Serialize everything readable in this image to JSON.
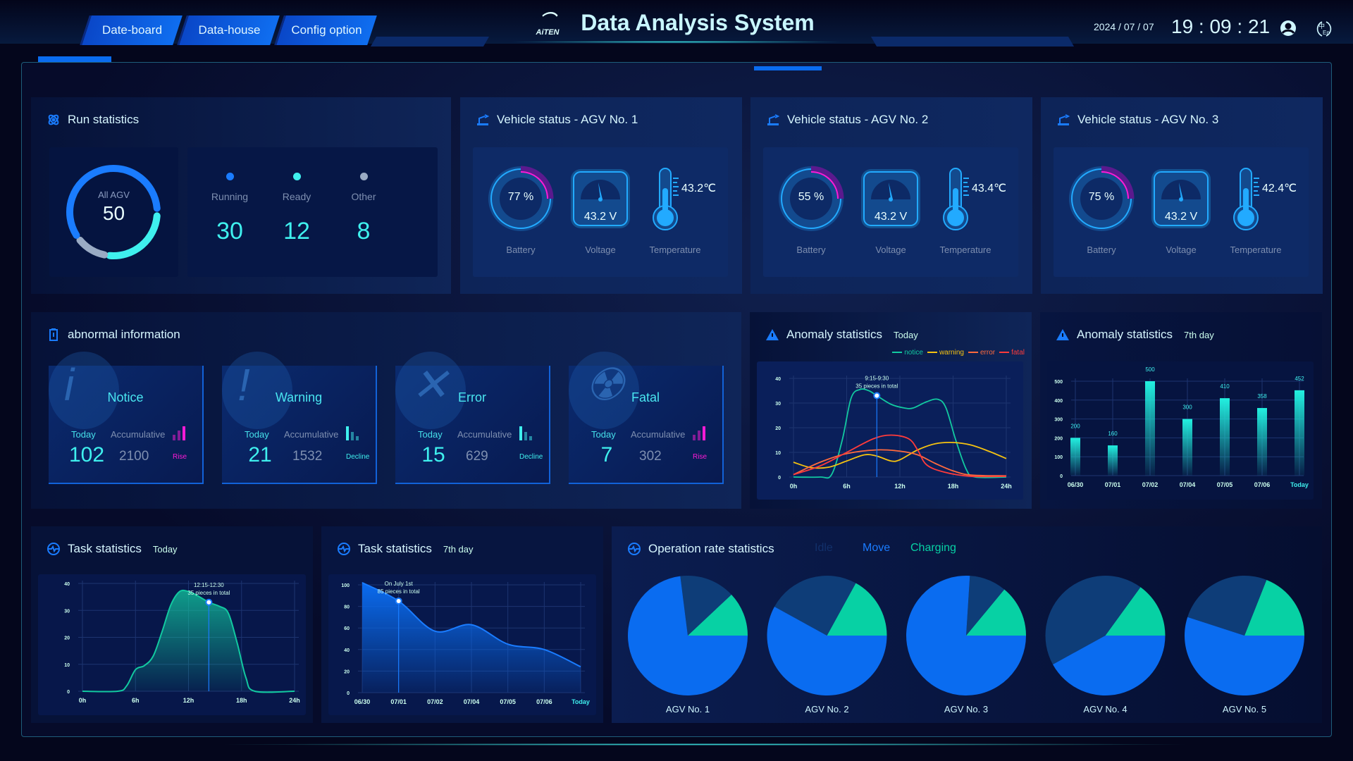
{
  "header": {
    "tabs": [
      "Date-board",
      "Data-house",
      "Config option"
    ],
    "logo": "AiTEN",
    "title": "Data Analysis System",
    "date": "2024 / 07 / 07",
    "time": "19 : 09 : 21",
    "user_icon": "user-icon",
    "lang_icon": "language-zh-en-icon"
  },
  "colors": {
    "accent": "#1a7cff",
    "cyan": "#3ff0ee",
    "magenta": "#ff1bd6",
    "notice": "#12c9a0",
    "warning": "#f5c211",
    "error": "#ff6a3d",
    "fatal": "#ff3b3b",
    "idle": "#0e3d78",
    "move": "#0a6cf0",
    "charging": "#07d1a4"
  },
  "run": {
    "title": "Run statistics",
    "center_label": "All AGV",
    "total": "50",
    "stats": [
      {
        "label": "Running",
        "value": "30",
        "color": "#1a7cff"
      },
      {
        "label": "Ready",
        "value": "12",
        "color": "#3ff0ee"
      },
      {
        "label": "Other",
        "value": "8",
        "color": "#9aabc4"
      }
    ]
  },
  "vehicles": [
    {
      "title": "Vehicle status - AGV No. 1",
      "battery": "77 %",
      "battery_pct": 77,
      "voltage": "43.2 V",
      "temperature": "43.2℃"
    },
    {
      "title": "Vehicle status - AGV No. 2",
      "battery": "55 %",
      "battery_pct": 55,
      "voltage": "43.2 V",
      "temperature": "43.4℃"
    },
    {
      "title": "Vehicle status - AGV No. 3",
      "battery": "75 %",
      "battery_pct": 75,
      "voltage": "43.2 V",
      "temperature": "42.4℃"
    }
  ],
  "vehicle_labels": {
    "battery": "Battery",
    "voltage": "Voltage",
    "temperature": "Temperature"
  },
  "abnormal": {
    "title": "abnormal information",
    "today_label": "Today",
    "acc_label": "Accumulative",
    "cards": [
      {
        "name": "Notice",
        "today": "102",
        "accumulative": "2100",
        "trend": "Rise",
        "icon": "info-icon"
      },
      {
        "name": "Warning",
        "today": "21",
        "accumulative": "1532",
        "trend": "Decline",
        "icon": "exclamation-icon"
      },
      {
        "name": "Error",
        "today": "15",
        "accumulative": "629",
        "trend": "Decline",
        "icon": "x-icon"
      },
      {
        "name": "Fatal",
        "today": "7",
        "accumulative": "302",
        "trend": "Rise",
        "icon": "radiation-icon"
      }
    ]
  },
  "chart_data": [
    {
      "id": "anomaly_today",
      "type": "line",
      "title": "Anomaly statistics",
      "subtitle": "Today",
      "x_ticks": [
        "0h",
        "6h",
        "12h",
        "18h",
        "24h"
      ],
      "xlim": [
        0,
        24
      ],
      "ylim": [
        0,
        40
      ],
      "y_ticks": [
        "0",
        "10",
        "20",
        "30",
        "40"
      ],
      "grid": true,
      "legend": "top-right",
      "tooltip": {
        "x": 9.4,
        "y": 33,
        "lines": [
          "9:15-9:30",
          "35 pieces in total"
        ]
      },
      "series": [
        {
          "name": "notice",
          "x": [
            0,
            3,
            4.3,
            5.5,
            6.5,
            7.5,
            8.5,
            9.4,
            11,
            12.5,
            13.5,
            15,
            16.3,
            17.2,
            18.3,
            19.5,
            20.5,
            24
          ],
          "y": [
            0,
            0,
            1,
            15,
            32,
            35.5,
            35,
            33,
            29.5,
            28,
            28,
            30.5,
            31.5,
            28,
            15,
            3,
            0,
            0
          ]
        },
        {
          "name": "warning",
          "x": [
            0,
            2,
            4,
            6,
            8,
            9.4,
            11,
            12,
            14,
            16,
            18,
            20,
            22,
            24
          ],
          "y": [
            6,
            3.8,
            4,
            6.5,
            9,
            8.5,
            6.5,
            7,
            11,
            13.5,
            14,
            13,
            10.5,
            7.5
          ]
        },
        {
          "name": "error",
          "x": [
            0,
            3,
            6,
            9.4,
            12,
            14,
            16,
            18,
            20,
            24
          ],
          "y": [
            1,
            6,
            9.5,
            11,
            10.5,
            9,
            5.5,
            2.5,
            0.8,
            0.5
          ]
        },
        {
          "name": "fatal",
          "x": [
            0,
            3,
            6,
            9,
            11,
            13,
            14,
            15,
            17,
            20,
            24
          ],
          "y": [
            1,
            4.5,
            10,
            15.5,
            17,
            15.5,
            11,
            5,
            2,
            0.3,
            0.3
          ]
        }
      ]
    },
    {
      "id": "anomaly_7day",
      "type": "bar",
      "title": "Anomaly statistics",
      "subtitle": "7th day",
      "categories": [
        "06/30",
        "07/01",
        "07/02",
        "07/04",
        "07/05",
        "07/06",
        "Today"
      ],
      "values": [
        200,
        160,
        500,
        300,
        410,
        358,
        452
      ],
      "ylim": [
        0,
        500
      ],
      "y_ticks": [
        "0",
        "100",
        "200",
        "300",
        "400",
        "500"
      ],
      "grid": true
    },
    {
      "id": "task_today",
      "type": "area",
      "title": "Task statistics",
      "subtitle": "Today",
      "x_ticks": [
        "0h",
        "6h",
        "12h",
        "18h",
        "24h"
      ],
      "xlim": [
        0,
        24
      ],
      "ylim": [
        0,
        40
      ],
      "y_ticks": [
        "0",
        "10",
        "20",
        "30",
        "40"
      ],
      "grid": true,
      "tooltip": {
        "x": 14.3,
        "y": 33,
        "lines": [
          "12:15-12:30",
          "35 pieces in total"
        ]
      },
      "series": [
        {
          "x": [
            0,
            4,
            5,
            6,
            7,
            8,
            9,
            10,
            11,
            12,
            13,
            14.3,
            15.5,
            16.5,
            17.5,
            18.5,
            19.5,
            24
          ],
          "y": [
            0,
            0,
            2,
            8,
            9.5,
            13,
            22,
            32,
            37,
            37,
            35.5,
            33,
            31.5,
            29,
            18,
            5,
            0,
            0
          ]
        }
      ]
    },
    {
      "id": "task_7day",
      "type": "area",
      "title": "Task statistics",
      "subtitle": "7th day",
      "categories": [
        "06/30",
        "07/01",
        "07/02",
        "07/04",
        "07/05",
        "07/06",
        "Today"
      ],
      "ylim": [
        0,
        100
      ],
      "y_ticks": [
        "0",
        "20",
        "40",
        "60",
        "80",
        "100"
      ],
      "grid": true,
      "tooltip": {
        "index": 1,
        "lines": [
          "On July 1st",
          "85 pieces in total"
        ]
      },
      "series": [
        {
          "values": [
            102,
            85,
            57,
            63,
            45,
            40,
            24
          ]
        }
      ]
    },
    {
      "id": "operation_rate",
      "type": "pie",
      "title": "Operation rate statistics",
      "legend": [
        "Idle",
        "Move",
        "Charging"
      ],
      "pies": [
        {
          "label": "AGV No. 1",
          "charging": 12,
          "idle": 15,
          "move": 73
        },
        {
          "label": "AGV No. 2",
          "charging": 17,
          "idle": 25,
          "move": 58
        },
        {
          "label": "AGV No. 3",
          "charging": 14,
          "idle": 10,
          "move": 76
        },
        {
          "label": "AGV No. 4",
          "charging": 15,
          "idle": 43,
          "move": 42
        },
        {
          "label": "AGV No. 5",
          "charging": 19,
          "idle": 26,
          "move": 55
        }
      ]
    }
  ]
}
